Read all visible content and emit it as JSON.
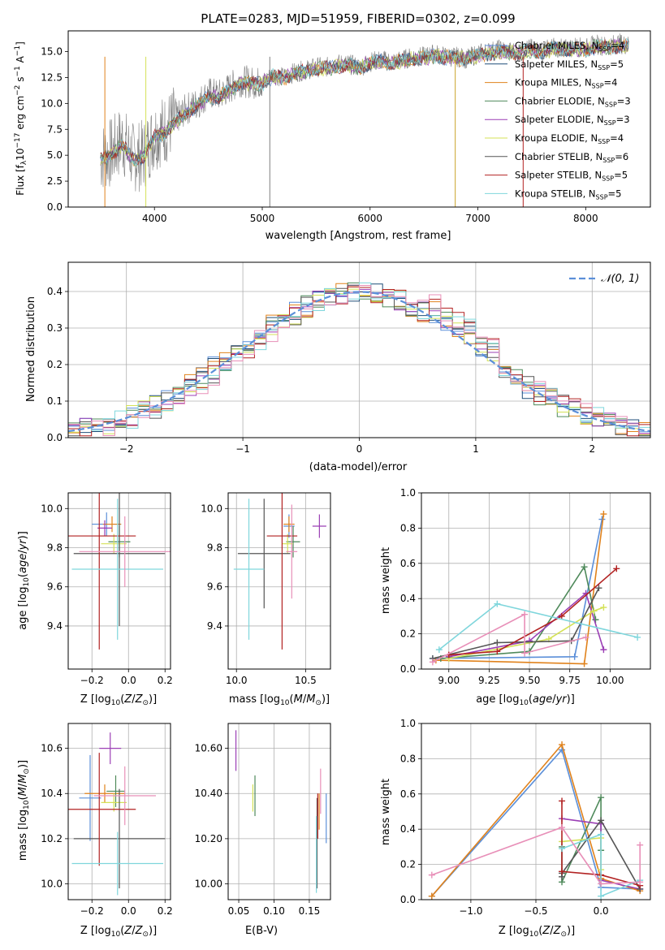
{
  "chart_data": [
    {
      "id": "spectrum",
      "type": "line",
      "title": "PLATE=0283, MJD=51959, FIBERID=0302, z=0.099",
      "xlabel": "wavelength [Angstrom, rest frame]",
      "ylabel": "Flux [f_λ 10^-17 erg cm^-2 s^-1 A^-1]",
      "xlim": [
        3200,
        8600
      ],
      "ylim": [
        0,
        17
      ],
      "xticks": [
        4000,
        5000,
        6000,
        7000,
        8000
      ],
      "yticks": [
        0.0,
        2.5,
        5.0,
        7.5,
        10.0,
        12.5,
        15.0
      ],
      "legend_position": "top-right",
      "series": [
        {
          "name": "Chabrier MILES, N_SSP=4",
          "color": "#5b8fd9"
        },
        {
          "name": "Salpeter MILES, N_SSP=5",
          "color": "#1f4e79"
        },
        {
          "name": "Kroupa MILES, N_SSP=4",
          "color": "#e0821c"
        },
        {
          "name": "Chabrier ELODIE, N_SSP=3",
          "color": "#4f8a5b"
        },
        {
          "name": "Salpeter ELODIE, N_SSP=3",
          "color": "#9b3fb5"
        },
        {
          "name": "Kroupa ELODIE, N_SSP=4",
          "color": "#d4e157"
        },
        {
          "name": "Chabrier STELIB, N_SSP=6",
          "color": "#555555"
        },
        {
          "name": "Salpeter STELIB, N_SSP=5",
          "color": "#b22222"
        },
        {
          "name": "Kroupa STELIB, N_SSP=5",
          "color": "#7fd6dc"
        }
      ],
      "observed_color": "#808080",
      "observed": {
        "x": [
          3500,
          3600,
          3700,
          3800,
          3900,
          4000,
          4100,
          4200,
          4300,
          4400,
          4500,
          4600,
          4700,
          4800,
          4900,
          5000,
          5100,
          5200,
          5300,
          5400,
          5500,
          5600,
          5700,
          5800,
          5900,
          6000,
          6100,
          6200,
          6300,
          6400,
          6500,
          6600,
          6700,
          6800,
          6900,
          7000,
          7100,
          7200,
          7300,
          7400,
          7500,
          7600,
          7700,
          7800,
          7900,
          8000,
          8100,
          8200,
          8300,
          8400
        ],
        "y": [
          4.8,
          5.2,
          6.5,
          4.8,
          5.0,
          7.0,
          7.5,
          8.5,
          9.5,
          10.0,
          11.0,
          10.8,
          11.5,
          12.2,
          12.0,
          12.0,
          12.8,
          12.5,
          13.0,
          13.2,
          13.5,
          13.5,
          13.8,
          13.8,
          13.5,
          14.0,
          14.2,
          14.0,
          14.2,
          14.5,
          14.5,
          14.8,
          14.5,
          14.5,
          14.3,
          14.8,
          15.0,
          15.2,
          15.0,
          15.0,
          15.3,
          15.0,
          15.5,
          15.2,
          15.5,
          15.3,
          15.7,
          15.5,
          15.8,
          15.6
        ]
      },
      "model": {
        "x": [
          3500,
          3600,
          3700,
          3800,
          3900,
          4000,
          4100,
          4200,
          4300,
          4400,
          4500,
          4600,
          4700,
          4800,
          4900,
          5000,
          5100,
          5200,
          5300,
          5400,
          5500,
          5600,
          5700,
          5800,
          5900,
          6000,
          6100,
          6200,
          6300,
          6400,
          6500,
          6600,
          6700,
          6800,
          6900,
          7000,
          7100,
          7200,
          7300,
          7400,
          7500,
          7600,
          7700,
          7800,
          7900,
          8000,
          8100,
          8200,
          8300,
          8400
        ],
        "y": [
          4.6,
          5.0,
          6.0,
          4.6,
          4.8,
          6.8,
          7.2,
          8.2,
          9.2,
          9.8,
          10.7,
          10.6,
          11.3,
          12.0,
          11.9,
          11.9,
          12.6,
          12.4,
          12.9,
          13.1,
          13.3,
          13.4,
          13.6,
          13.7,
          13.4,
          13.9,
          14.0,
          13.9,
          14.1,
          14.3,
          14.4,
          14.6,
          14.4,
          14.4,
          14.3,
          14.6,
          14.8,
          15.0,
          14.9,
          14.9,
          15.1,
          15.0,
          15.3,
          15.1,
          15.3,
          15.2,
          15.5,
          15.4,
          15.6,
          15.5
        ]
      }
    },
    {
      "id": "residuals",
      "type": "bar",
      "xlabel": "(data-model)/error",
      "ylabel": "Normed distribution",
      "xlim": [
        -2.5,
        2.5
      ],
      "ylim": [
        0,
        0.48
      ],
      "xticks": [
        -2,
        -1,
        0,
        1,
        2
      ],
      "yticks": [
        0.0,
        0.1,
        0.2,
        0.3,
        0.4
      ],
      "legend_position": "top-right",
      "reference_label": "𝒩(0, 1)",
      "reference_color": "#5b8fd9"
    },
    {
      "id": "age-vs-z",
      "type": "scatter",
      "xlabel": "Z [log10(Z/Z⊙)]",
      "ylabel": "age [log10(age/yr)]",
      "xlim": [
        -0.33,
        0.23
      ],
      "ylim": [
        9.18,
        10.08
      ],
      "xticks": [
        -0.2,
        0.0,
        0.2
      ],
      "yticks": [
        9.4,
        9.6,
        9.8,
        10.0
      ],
      "points": [
        {
          "x": -0.12,
          "y": 9.92,
          "xerr": 0.08,
          "yerr": 0.06,
          "color": "#5b8fd9"
        },
        {
          "x": -0.09,
          "y": 9.92,
          "xerr": 0.05,
          "yerr": 0.04,
          "color": "#e0821c"
        },
        {
          "x": -0.05,
          "y": 9.83,
          "xerr": 0.06,
          "yerr": 0.08,
          "color": "#4f8a5b"
        },
        {
          "x": -0.13,
          "y": 9.9,
          "xerr": 0.04,
          "yerr": 0.04,
          "color": "#9b3fb5"
        },
        {
          "x": -0.08,
          "y": 9.82,
          "xerr": 0.07,
          "yerr": 0.05,
          "color": "#d4e157"
        },
        {
          "x": -0.05,
          "y": 9.77,
          "xerr": 0.25,
          "yerr": 0.37,
          "color": "#555555"
        },
        {
          "x": -0.16,
          "y": 9.86,
          "xerr": 0.2,
          "yerr": 0.58,
          "color": "#b22222"
        },
        {
          "x": -0.06,
          "y": 9.69,
          "xerr": 0.25,
          "yerr": 0.36,
          "color": "#7fd6dc"
        },
        {
          "x": -0.02,
          "y": 9.78,
          "xerr": 0.25,
          "yerr": 0.18,
          "color": "#e88fb8"
        }
      ]
    },
    {
      "id": "age-vs-mass",
      "type": "scatter",
      "xlabel": "mass [log10(M/M⊙)]",
      "ylabel": "",
      "xlim": [
        9.94,
        10.68
      ],
      "ylim": [
        9.18,
        10.08
      ],
      "xticks": [
        10.0,
        10.5
      ],
      "yticks": [
        9.4,
        9.6,
        9.8,
        10.0
      ],
      "points": [
        {
          "x": 10.38,
          "y": 9.91,
          "xerr": 0.04,
          "yerr": 0.06,
          "color": "#5b8fd9"
        },
        {
          "x": 10.38,
          "y": 9.92,
          "xerr": 0.04,
          "yerr": 0.04,
          "color": "#e0821c"
        },
        {
          "x": 10.41,
          "y": 9.83,
          "xerr": 0.05,
          "yerr": 0.08,
          "color": "#4f8a5b"
        },
        {
          "x": 10.6,
          "y": 9.91,
          "xerr": 0.05,
          "yerr": 0.06,
          "color": "#9b3fb5"
        },
        {
          "x": 10.37,
          "y": 9.82,
          "xerr": 0.04,
          "yerr": 0.05,
          "color": "#d4e157"
        },
        {
          "x": 10.2,
          "y": 9.77,
          "xerr": 0.19,
          "yerr": 0.28,
          "color": "#555555"
        },
        {
          "x": 10.33,
          "y": 9.86,
          "xerr": 0.11,
          "yerr": 0.58,
          "color": "#b22222"
        },
        {
          "x": 10.09,
          "y": 9.69,
          "xerr": 0.11,
          "yerr": 0.36,
          "color": "#7fd6dc"
        },
        {
          "x": 10.4,
          "y": 9.78,
          "xerr": 0.04,
          "yerr": 0.24,
          "color": "#e88fb8"
        }
      ]
    },
    {
      "id": "weight-vs-age",
      "type": "line",
      "xlabel": "age [log10(age/yr)]",
      "ylabel": "mass weight",
      "xlim": [
        8.83,
        10.25
      ],
      "ylim": [
        0,
        1.0
      ],
      "xticks": [
        9.0,
        9.25,
        9.5,
        9.75,
        10.0
      ],
      "yticks": [
        0.0,
        0.2,
        0.4,
        0.6,
        0.8,
        1.0
      ],
      "series": [
        {
          "color": "#5b8fd9",
          "x": [
            8.9,
            9.78,
            9.95
          ],
          "y": [
            0.06,
            0.07,
            0.85
          ]
        },
        {
          "color": "#e0821c",
          "x": [
            8.92,
            9.84,
            9.96
          ],
          "y": [
            0.05,
            0.03,
            0.88
          ]
        },
        {
          "color": "#4f8a5b",
          "x": [
            8.95,
            9.5,
            9.84,
            9.91
          ],
          "y": [
            0.06,
            0.1,
            0.58,
            0.28
          ]
        },
        {
          "color": "#9b3fb5",
          "x": [
            9.0,
            9.5,
            9.85,
            9.96
          ],
          "y": [
            0.07,
            0.16,
            0.43,
            0.11
          ]
        },
        {
          "color": "#d4e157",
          "x": [
            9.0,
            9.62,
            9.9,
            9.96
          ],
          "y": [
            0.06,
            0.17,
            0.33,
            0.35
          ]
        },
        {
          "color": "#555555",
          "x": [
            8.9,
            9.3,
            9.76,
            9.93
          ],
          "y": [
            0.06,
            0.15,
            0.16,
            0.46
          ]
        },
        {
          "color": "#b22222",
          "x": [
            9.0,
            9.3,
            9.7,
            10.04
          ],
          "y": [
            0.08,
            0.1,
            0.3,
            0.57
          ]
        },
        {
          "color": "#7fd6dc",
          "x": [
            8.94,
            9.3,
            10.17
          ],
          "y": [
            0.11,
            0.37,
            0.18
          ]
        },
        {
          "color": "#e88fb8",
          "x": [
            8.9,
            9.47,
            9.47,
            9.85
          ],
          "y": [
            0.04,
            0.31,
            0.09,
            0.18
          ]
        }
      ]
    },
    {
      "id": "mass-vs-z",
      "type": "scatter",
      "xlabel": "Z [log10(Z/Z⊙)]",
      "ylabel": "mass [log10(M/M⊙)]",
      "xlim": [
        -0.33,
        0.23
      ],
      "ylim": [
        9.93,
        10.71
      ],
      "xticks": [
        -0.2,
        0.0,
        0.2
      ],
      "yticks": [
        10.0,
        10.2,
        10.4,
        10.6
      ],
      "points": [
        {
          "x": -0.21,
          "y": 10.38,
          "xerr": 0.06,
          "yerr": 0.19,
          "color": "#5b8fd9"
        },
        {
          "x": -0.13,
          "y": 10.4,
          "xerr": 0.11,
          "yerr": 0.04,
          "color": "#e0821c"
        },
        {
          "x": -0.07,
          "y": 10.41,
          "xerr": 0.05,
          "yerr": 0.07,
          "color": "#4f8a5b"
        },
        {
          "x": -0.1,
          "y": 10.6,
          "xerr": 0.06,
          "yerr": 0.07,
          "color": "#9b3fb5"
        },
        {
          "x": -0.08,
          "y": 10.36,
          "xerr": 0.07,
          "yerr": 0.04,
          "color": "#d4e157"
        },
        {
          "x": -0.05,
          "y": 10.2,
          "xerr": 0.25,
          "yerr": 0.22,
          "color": "#555555"
        },
        {
          "x": -0.16,
          "y": 10.33,
          "xerr": 0.2,
          "yerr": 0.25,
          "color": "#b22222"
        },
        {
          "x": -0.06,
          "y": 10.09,
          "xerr": 0.25,
          "yerr": 0.14,
          "color": "#7fd6dc"
        },
        {
          "x": -0.02,
          "y": 10.39,
          "xerr": 0.17,
          "yerr": 0.13,
          "color": "#e88fb8"
        }
      ]
    },
    {
      "id": "mass-vs-ebv",
      "type": "scatter",
      "xlabel": "E(B-V)",
      "ylabel": "",
      "xlim": [
        0.035,
        0.18
      ],
      "ylim": [
        9.93,
        10.71
      ],
      "xticks": [
        0.05,
        0.1,
        0.15
      ],
      "yticks": [
        10.0,
        10.2,
        10.4,
        10.6
      ],
      "points": [
        {
          "x": 0.174,
          "y": 10.29,
          "xerr": 0,
          "yerr": 0.11,
          "color": "#5b8fd9"
        },
        {
          "x": 0.164,
          "y": 10.32,
          "xerr": 0,
          "yerr": 0.08,
          "color": "#e0821c"
        },
        {
          "x": 0.073,
          "y": 10.39,
          "xerr": 0,
          "yerr": 0.09,
          "color": "#4f8a5b"
        },
        {
          "x": 0.046,
          "y": 10.59,
          "xerr": 0,
          "yerr": 0.09,
          "color": "#9b3fb5"
        },
        {
          "x": 0.07,
          "y": 10.38,
          "xerr": 0,
          "yerr": 0.06,
          "color": "#d4e157"
        },
        {
          "x": 0.161,
          "y": 10.18,
          "xerr": 0,
          "yerr": 0.2,
          "color": "#555555"
        },
        {
          "x": 0.162,
          "y": 10.3,
          "xerr": 0,
          "yerr": 0.1,
          "color": "#b22222"
        },
        {
          "x": 0.16,
          "y": 10.13,
          "xerr": 0,
          "yerr": 0.17,
          "color": "#7fd6dc"
        },
        {
          "x": 0.166,
          "y": 10.41,
          "xerr": 0,
          "yerr": 0.1,
          "color": "#e88fb8"
        }
      ]
    },
    {
      "id": "weight-vs-z",
      "type": "line",
      "xlabel": "Z [log10(Z/Z⊙)]",
      "ylabel": "mass weight",
      "xlim": [
        -1.38,
        0.38
      ],
      "ylim": [
        0,
        1.0
      ],
      "xticks": [
        -1.0,
        -0.5,
        0.0
      ],
      "yticks": [
        0.0,
        0.2,
        0.4,
        0.6,
        0.8,
        1.0
      ],
      "series": [
        {
          "color": "#5b8fd9",
          "x": [
            -1.3,
            -0.3,
            0.0,
            0.3
          ],
          "y": [
            0.02,
            0.85,
            0.07,
            0.06
          ]
        },
        {
          "color": "#e0821c",
          "x": [
            -1.3,
            -0.3,
            0.0,
            0.3
          ],
          "y": [
            0.02,
            0.88,
            0.12,
            0.05
          ]
        },
        {
          "color": "#4f8a5b",
          "x": [
            -0.3,
            -0.3,
            0.0,
            0.0
          ],
          "y": [
            0.3,
            0.1,
            0.58,
            0.28
          ]
        },
        {
          "color": "#9b3fb5",
          "x": [
            -0.3,
            0.0,
            0.0,
            0.3
          ],
          "y": [
            0.46,
            0.43,
            0.11,
            0.06
          ]
        },
        {
          "color": "#d4e157",
          "x": [
            -0.3,
            0.0,
            0.0
          ],
          "y": [
            0.33,
            0.35,
            0.17
          ]
        },
        {
          "color": "#555555",
          "x": [
            -0.3,
            -0.3,
            0.0,
            0.3
          ],
          "y": [
            0.13,
            0.15,
            0.45,
            0.06
          ]
        },
        {
          "color": "#b22222",
          "x": [
            -0.3,
            -0.3,
            0.0,
            0.3
          ],
          "y": [
            0.56,
            0.16,
            0.14,
            0.08
          ]
        },
        {
          "color": "#7fd6dc",
          "x": [
            -0.3,
            0.0,
            0.0,
            0.3
          ],
          "y": [
            0.29,
            0.37,
            0.02,
            0.11
          ]
        },
        {
          "color": "#e88fb8",
          "x": [
            -1.3,
            -0.3,
            0.0,
            0.3,
            0.3
          ],
          "y": [
            0.14,
            0.41,
            0.09,
            0.1,
            0.31
          ]
        }
      ]
    }
  ]
}
